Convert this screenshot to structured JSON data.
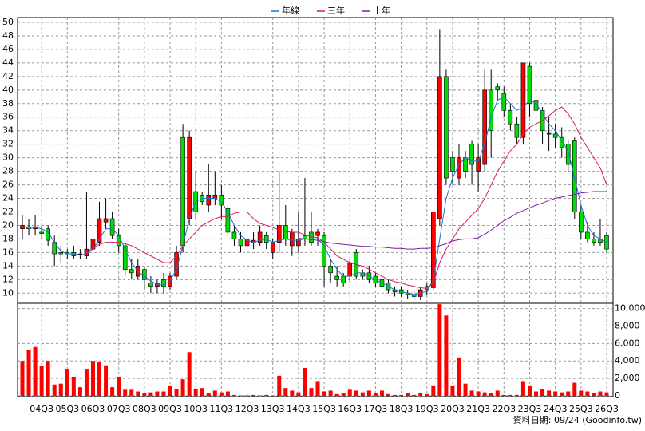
{
  "chart_data": [
    {
      "type": "candlestick",
      "categories": [
        null,
        null,
        null,
        "04Q3",
        null,
        null,
        null,
        "05Q3",
        null,
        null,
        null,
        "06Q3",
        null,
        null,
        null,
        "07Q3",
        null,
        null,
        null,
        "08Q3",
        null,
        null,
        null,
        "09Q3",
        null,
        null,
        null,
        "10Q3",
        null,
        null,
        null,
        "11Q3",
        null,
        null,
        null,
        "12Q3",
        null,
        null,
        null,
        "13Q3",
        null,
        null,
        null,
        "14Q3",
        null,
        null,
        null,
        "15Q3",
        null,
        null,
        null,
        "16Q3",
        null,
        null,
        null,
        "17Q3",
        null,
        null,
        null,
        "18Q3",
        null,
        null,
        null,
        "19Q3",
        null,
        null,
        null,
        "20Q3",
        null,
        null,
        null,
        "21Q3",
        null,
        null,
        null,
        "22Q3",
        null,
        null,
        null,
        "23Q3",
        null,
        null,
        null,
        "24Q3",
        null,
        null,
        null,
        "25Q3",
        null,
        null,
        null,
        "26Q3"
      ],
      "open": [
        19.5,
        19.8,
        19.5,
        19,
        19.5,
        17.5,
        16,
        16,
        16,
        15.8,
        15.5,
        16.5,
        17.5,
        20.5,
        21,
        18.5,
        17,
        13.5,
        12.5,
        13.5,
        11.5,
        11,
        12,
        11,
        12.5,
        33,
        21,
        25,
        24.5,
        23,
        24,
        24.5,
        22.5,
        19,
        18,
        17,
        17.5,
        17.5,
        18.5,
        16,
        17.5,
        20,
        17,
        17,
        18.5,
        19,
        18.5,
        18.5,
        14,
        12.5,
        12.5,
        12.5,
        16,
        13,
        13,
        12.5,
        12,
        11.5,
        10.5,
        10.5,
        10,
        9.8,
        9.5,
        11,
        10.8,
        21,
        42,
        30,
        27,
        30,
        32,
        28,
        29,
        40,
        40.5,
        39.5,
        37,
        35,
        33,
        43.5,
        38.5,
        37,
        33.5,
        33.5,
        33,
        32,
        32.5,
        22,
        19,
        18,
        18,
        18.5
      ],
      "high": [
        21.5,
        21,
        21.5,
        20,
        20,
        18.5,
        17,
        16.5,
        17,
        16.5,
        25,
        24.5,
        23.5,
        24,
        22,
        19.5,
        17.5,
        15,
        15,
        14,
        12.5,
        12,
        13,
        13,
        17,
        35,
        34,
        28,
        25,
        29,
        28,
        26,
        23,
        20,
        19,
        18.5,
        19,
        20,
        19,
        18,
        28,
        23,
        19.5,
        22,
        27,
        22,
        19.5,
        19,
        15,
        14,
        13,
        15,
        16.5,
        13.5,
        14,
        13,
        12.5,
        12,
        11,
        11,
        10.5,
        10.3,
        11,
        11.5,
        22,
        49,
        43,
        31,
        32,
        31,
        32.5,
        32,
        43,
        43,
        41,
        40.5,
        38,
        36,
        44,
        44,
        39,
        37.5,
        36,
        35,
        34.5,
        32.5,
        33,
        23,
        20.5,
        19,
        21,
        19
      ],
      "low": [
        18,
        18.5,
        18.5,
        18,
        17,
        14,
        14.5,
        15,
        15,
        15,
        15,
        16,
        17,
        19.5,
        18,
        16,
        12.5,
        12,
        12,
        10.5,
        10,
        10,
        10,
        10.5,
        12,
        16,
        20,
        21,
        23,
        22,
        23,
        21,
        18.5,
        17,
        16,
        16,
        16.5,
        17,
        16.5,
        15,
        16,
        17,
        15.5,
        16,
        17,
        17,
        17,
        11,
        11.5,
        11,
        11,
        11.5,
        12,
        12,
        11.5,
        11,
        10.5,
        10,
        9.5,
        9.5,
        9.2,
        9,
        9,
        9.8,
        10.5,
        20,
        26,
        26,
        26,
        27,
        26,
        25,
        28,
        30,
        38.5,
        36,
        34,
        32,
        32,
        36,
        36,
        32,
        31,
        31.5,
        30,
        28,
        21,
        18,
        17.5,
        17,
        17,
        16
      ],
      "close": [
        20,
        19.5,
        19.8,
        18.8,
        17.8,
        15.8,
        15.8,
        15.8,
        15.5,
        15.8,
        16.5,
        18,
        21,
        21,
        18.5,
        17,
        13.5,
        13,
        14,
        12,
        11,
        11.5,
        11,
        12.5,
        16,
        17,
        33,
        22,
        23.5,
        24.5,
        24.5,
        23,
        19,
        18,
        17,
        18,
        17.8,
        19,
        17.5,
        17.5,
        20,
        18,
        19,
        18,
        18,
        17.5,
        19,
        14,
        13,
        12,
        11.5,
        14.5,
        12.5,
        12.5,
        12,
        11.5,
        11,
        10.5,
        10.2,
        10,
        9.8,
        9.5,
        10.5,
        10.5,
        22,
        42,
        27,
        28,
        30,
        28,
        29,
        30,
        40,
        34,
        40,
        37,
        35,
        33,
        44,
        38,
        37,
        34,
        33.6,
        33,
        31.5,
        29,
        22,
        19,
        18,
        17.5,
        17.5,
        16.5
      ],
      "up_color": "#ff0000",
      "down_color": "#00dd00",
      "series": [
        {
          "name": "年線",
          "color": "#1e6fd9",
          "values": [
            null,
            19.5,
            19.7,
            19.5,
            19,
            17.5,
            16.2,
            15.8,
            15.8,
            15.6,
            15.8,
            16.5,
            18,
            19.5,
            19.5,
            18.5,
            16.5,
            14.5,
            13.2,
            12.5,
            11.8,
            11.3,
            11.2,
            11.8,
            13.5,
            17,
            21,
            23.5,
            24,
            24,
            24,
            23.5,
            22,
            20,
            18.5,
            17.8,
            17.5,
            17.8,
            18,
            17.5,
            17.8,
            18,
            17.8,
            17.8,
            18,
            18,
            18,
            17,
            15,
            13.5,
            12.5,
            12.5,
            13,
            13,
            12.5,
            12,
            11.5,
            11,
            10.5,
            10.2,
            10,
            9.8,
            10,
            10.3,
            12,
            18,
            24,
            27,
            29,
            30,
            29.5,
            29.5,
            32,
            36,
            38.5,
            39,
            38,
            37,
            37.5,
            38.5,
            38,
            36.5,
            35,
            34,
            32.5,
            31,
            27,
            23,
            20,
            18.5,
            18,
            17.5
          ]
        },
        {
          "name": "三年",
          "color": "#d81b60",
          "values": [
            null,
            null,
            null,
            null,
            null,
            null,
            null,
            null,
            null,
            null,
            16,
            16.7,
            17.2,
            17.5,
            17.5,
            17.5,
            17.3,
            17,
            16.5,
            16,
            15.5,
            15,
            14.5,
            14.5,
            15.5,
            17,
            18,
            19,
            20,
            20.5,
            21,
            21.3,
            21.3,
            21.8,
            22,
            22,
            21,
            20.3,
            20,
            19.7,
            19.3,
            19.1,
            19,
            19,
            18.6,
            18.3,
            18.2,
            17.5,
            16.5,
            15.5,
            15,
            14.5,
            14.2,
            14,
            13.5,
            13,
            12.5,
            12,
            11.7,
            11.5,
            11.2,
            11,
            10.8,
            10.7,
            11.5,
            14.5,
            16.5,
            18,
            19.5,
            20.5,
            21.5,
            22.5,
            24,
            26,
            28,
            29.5,
            31,
            32,
            33.5,
            34.5,
            35,
            35.5,
            36.2,
            37,
            37.5,
            36.5,
            35,
            33,
            31.5,
            30,
            28.5,
            26
          ]
        },
        {
          "name": "十年",
          "color": "#7b1fa2",
          "values": [
            null,
            null,
            null,
            null,
            null,
            null,
            null,
            null,
            null,
            null,
            null,
            null,
            null,
            null,
            null,
            null,
            null,
            null,
            null,
            null,
            null,
            null,
            null,
            null,
            null,
            null,
            null,
            null,
            null,
            null,
            null,
            null,
            null,
            null,
            null,
            null,
            null,
            null,
            null,
            null,
            null,
            null,
            null,
            18.1,
            18,
            17.9,
            17.8,
            17.6,
            17.4,
            17.3,
            17.2,
            17.1,
            17,
            16.9,
            16.9,
            16.8,
            16.8,
            16.7,
            16.6,
            16.6,
            16.5,
            16.5,
            16.6,
            16.6,
            16.7,
            17,
            17.3,
            17.7,
            17.9,
            18,
            18,
            18.2,
            18.7,
            19.3,
            20,
            20.7,
            21.2,
            21.8,
            22.2,
            22.6,
            23,
            23.3,
            23.7,
            24,
            24.2,
            24.4,
            24.6,
            24.8,
            24.9,
            25,
            25,
            25
          ]
        }
      ],
      "ylim": [
        8.5,
        50
      ],
      "yticks": [
        10,
        12,
        14,
        16,
        18,
        20,
        22,
        24,
        26,
        28,
        30,
        32,
        34,
        36,
        38,
        40,
        42,
        44,
        46,
        48,
        50
      ],
      "grid": true
    },
    {
      "type": "bar",
      "color": "#ff0000",
      "values": [
        4000,
        5300,
        5600,
        3400,
        4000,
        1300,
        1400,
        3100,
        2200,
        1000,
        3100,
        4000,
        3900,
        3500,
        1000,
        2200,
        700,
        700,
        500,
        300,
        400,
        500,
        500,
        1200,
        800,
        1900,
        5000,
        800,
        900,
        300,
        600,
        400,
        500,
        100,
        50,
        50,
        100,
        50,
        100,
        50,
        2300,
        900,
        600,
        400,
        3200,
        900,
        1700,
        500,
        600,
        200,
        300,
        700,
        600,
        400,
        600,
        300,
        600,
        200,
        100,
        100,
        300,
        100,
        300,
        200,
        1200,
        10500,
        9200,
        1200,
        4400,
        1400,
        600,
        500,
        400,
        300,
        600,
        100,
        100,
        100,
        1700,
        1200,
        500,
        800,
        600,
        500,
        400,
        500,
        1500,
        600,
        500,
        300,
        500,
        400
      ],
      "ylim": [
        0,
        10600
      ],
      "yticks": [
        0,
        {
          "value": 2000,
          "label": "2,000"
        },
        {
          "value": 4000,
          "label": "4,000"
        },
        {
          "value": 6000,
          "label": "6,000"
        },
        {
          "value": 8000,
          "label": "8,000"
        },
        {
          "value": 10000,
          "label": "10,000"
        }
      ],
      "grid": true
    }
  ],
  "footer": "資料日期: 09/24  (Goodinfo.tw)"
}
